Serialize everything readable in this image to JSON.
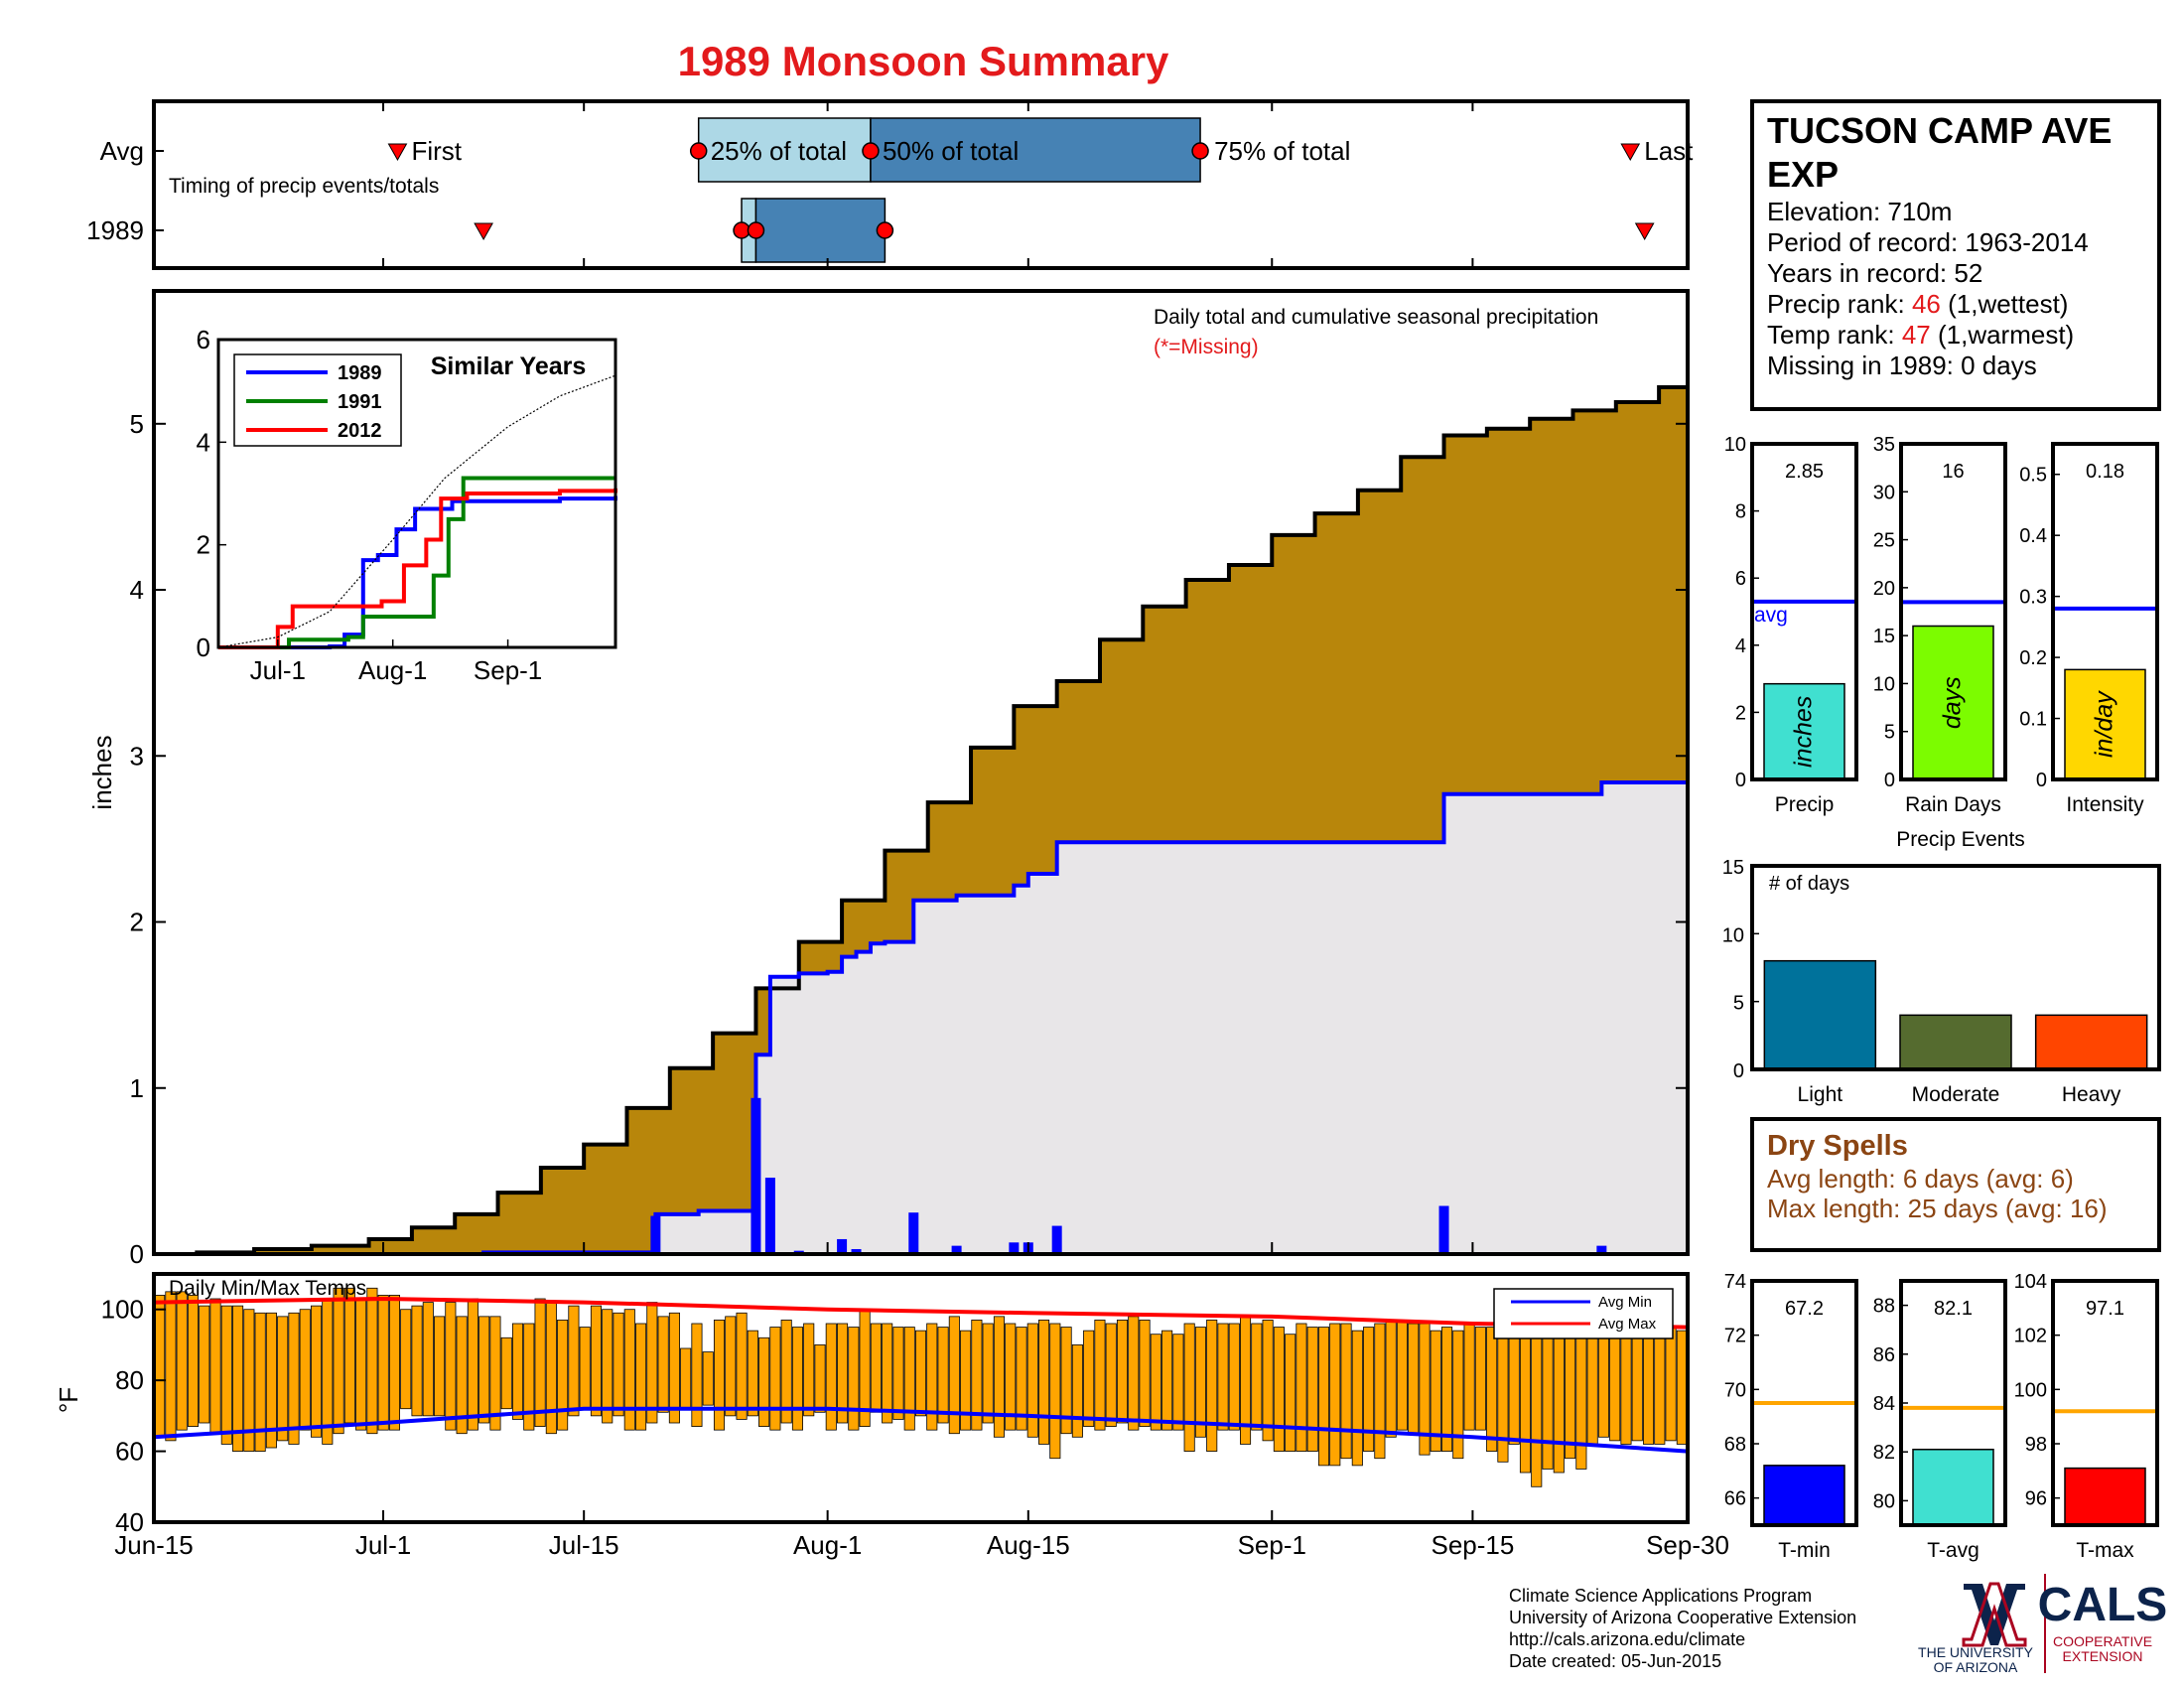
{
  "title": "1989 Monsoon Summary",
  "colors": {
    "title": "#e31a1c",
    "cum_fill": "#b8860b",
    "avg_fill": "#e8e6e8",
    "precip_line": "#0000ff",
    "temp_bar": "#ffa500",
    "avg_max": "#ff0000",
    "avg_min": "#0000ff",
    "q_light": "#add8e6",
    "q_dark": "#4682b4",
    "marker": "#ff0000",
    "year1989": "#0000ff",
    "year1991": "#008000",
    "year2012": "#ff0000",
    "bar_precip": "#40e0d0",
    "bar_days": "#7cfc00",
    "bar_intensity": "#ffd700",
    "ev_light": "#00729b",
    "ev_moderate": "#556b2f",
    "ev_heavy": "#ff4500",
    "dry_text": "#8b4513",
    "tmin": "#0000ff",
    "tavg": "#40e0d0",
    "tmax": "#ff0000",
    "avg_orange": "#ffa500"
  },
  "timing": {
    "row_avg_label": "Avg",
    "row_year_label": "1989",
    "subtitle": "Timing of precip events/totals",
    "labels": {
      "first": "First",
      "q25": "25% of total",
      "q50": "50% of total",
      "q75": "75% of total",
      "last": "Last"
    },
    "avg_dates": {
      "first": "2021-07-02",
      "q25": "2021-07-23",
      "q50": "2021-08-04",
      "q75": "2021-08-27",
      "last": "2021-09-26"
    },
    "year_dates": {
      "first": "2021-07-08",
      "q25": "2021-07-26",
      "q25b": "2021-07-27",
      "q75": "2021-08-05",
      "last": "2021-09-27"
    }
  },
  "main_chart": {
    "note": "Daily total and cumulative seasonal precipitation",
    "missing_note": "(*=Missing)",
    "ylabel": "inches",
    "ylim": [
      0,
      5.8
    ],
    "yticks": [
      0,
      1,
      2,
      3,
      4,
      5
    ],
    "avg_cumulative": [
      [
        "2021-06-15",
        0
      ],
      [
        "2021-06-18",
        0.01
      ],
      [
        "2021-06-22",
        0.03
      ],
      [
        "2021-06-26",
        0.05
      ],
      [
        "2021-06-30",
        0.09
      ],
      [
        "2021-07-03",
        0.16
      ],
      [
        "2021-07-06",
        0.24
      ],
      [
        "2021-07-09",
        0.37
      ],
      [
        "2021-07-12",
        0.52
      ],
      [
        "2021-07-15",
        0.66
      ],
      [
        "2021-07-18",
        0.88
      ],
      [
        "2021-07-21",
        1.12
      ],
      [
        "2021-07-24",
        1.33
      ],
      [
        "2021-07-27",
        1.6
      ],
      [
        "2021-07-30",
        1.88
      ],
      [
        "2021-08-02",
        2.13
      ],
      [
        "2021-08-05",
        2.43
      ],
      [
        "2021-08-08",
        2.72
      ],
      [
        "2021-08-11",
        3.05
      ],
      [
        "2021-08-14",
        3.3
      ],
      [
        "2021-08-17",
        3.45
      ],
      [
        "2021-08-20",
        3.7
      ],
      [
        "2021-08-23",
        3.9
      ],
      [
        "2021-08-26",
        4.06
      ],
      [
        "2021-08-29",
        4.15
      ],
      [
        "2021-09-01",
        4.33
      ],
      [
        "2021-09-04",
        4.46
      ],
      [
        "2021-09-07",
        4.6
      ],
      [
        "2021-09-10",
        4.8
      ],
      [
        "2021-09-13",
        4.93
      ],
      [
        "2021-09-16",
        4.97
      ],
      [
        "2021-09-19",
        5.03
      ],
      [
        "2021-09-22",
        5.08
      ],
      [
        "2021-09-25",
        5.13
      ],
      [
        "2021-09-28",
        5.22
      ],
      [
        "2021-09-30",
        5.25
      ]
    ],
    "year_cumulative": [
      [
        "2021-06-15",
        0
      ],
      [
        "2021-07-08",
        0.01
      ],
      [
        "2021-07-19",
        0.01
      ],
      [
        "2021-07-20",
        0.24
      ],
      [
        "2021-07-23",
        0.26
      ],
      [
        "2021-07-26",
        0.26
      ],
      [
        "2021-07-27",
        1.2
      ],
      [
        "2021-07-28",
        1.67
      ],
      [
        "2021-07-30",
        1.69
      ],
      [
        "2021-08-01",
        1.7
      ],
      [
        "2021-08-02",
        1.79
      ],
      [
        "2021-08-03",
        1.82
      ],
      [
        "2021-08-04",
        1.87
      ],
      [
        "2021-08-05",
        1.88
      ],
      [
        "2021-08-06",
        1.88
      ],
      [
        "2021-08-07",
        2.13
      ],
      [
        "2021-08-10",
        2.16
      ],
      [
        "2021-08-14",
        2.22
      ],
      [
        "2021-08-15",
        2.29
      ],
      [
        "2021-08-17",
        2.48
      ],
      [
        "2021-09-12",
        2.48
      ],
      [
        "2021-09-13",
        2.77
      ],
      [
        "2021-09-23",
        2.77
      ],
      [
        "2021-09-24",
        2.84
      ],
      [
        "2021-09-30",
        2.84
      ]
    ],
    "daily_precip": [
      [
        "2021-07-20",
        0.23
      ],
      [
        "2021-07-24",
        0.01
      ],
      [
        "2021-07-27",
        0.94
      ],
      [
        "2021-07-28",
        0.46
      ],
      [
        "2021-07-30",
        0.02
      ],
      [
        "2021-08-01",
        0.01
      ],
      [
        "2021-08-02",
        0.09
      ],
      [
        "2021-08-03",
        0.03
      ],
      [
        "2021-08-07",
        0.25
      ],
      [
        "2021-08-10",
        0.05
      ],
      [
        "2021-08-14",
        0.07
      ],
      [
        "2021-08-15",
        0.07
      ],
      [
        "2021-08-17",
        0.17
      ],
      [
        "2021-09-13",
        0.29
      ],
      [
        "2021-09-24",
        0.05
      ]
    ]
  },
  "inset": {
    "title": "Similar Years",
    "ylim": [
      0,
      6
    ],
    "yticks": [
      0,
      2,
      4,
      6
    ],
    "xticks": [
      "Jul-1",
      "Aug-1",
      "Sep-1"
    ],
    "series": [
      {
        "name": "1989",
        "color": "#0000ff",
        "points": [
          [
            "2021-06-15",
            0
          ],
          [
            "2021-07-15",
            0.02
          ],
          [
            "2021-07-19",
            0.25
          ],
          [
            "2021-07-24",
            1.7
          ],
          [
            "2021-07-28",
            1.8
          ],
          [
            "2021-08-02",
            2.3
          ],
          [
            "2021-08-07",
            2.7
          ],
          [
            "2021-08-17",
            2.85
          ],
          [
            "2021-09-15",
            2.9
          ],
          [
            "2021-09-30",
            2.95
          ]
        ]
      },
      {
        "name": "1991",
        "color": "#008000",
        "points": [
          [
            "2021-06-15",
            0
          ],
          [
            "2021-07-04",
            0.15
          ],
          [
            "2021-07-20",
            0.2
          ],
          [
            "2021-07-24",
            0.6
          ],
          [
            "2021-08-07",
            0.6
          ],
          [
            "2021-08-12",
            1.4
          ],
          [
            "2021-08-16",
            2.5
          ],
          [
            "2021-08-20",
            3.3
          ],
          [
            "2021-09-05",
            3.3
          ],
          [
            "2021-09-30",
            3.3
          ]
        ]
      },
      {
        "name": "2012",
        "color": "#ff0000",
        "points": [
          [
            "2021-06-15",
            0
          ],
          [
            "2021-06-28",
            0
          ],
          [
            "2021-07-01",
            0.4
          ],
          [
            "2021-07-05",
            0.8
          ],
          [
            "2021-07-29",
            0.9
          ],
          [
            "2021-08-04",
            1.6
          ],
          [
            "2021-08-10",
            2.1
          ],
          [
            "2021-08-14",
            2.9
          ],
          [
            "2021-08-21",
            3.0
          ],
          [
            "2021-09-15",
            3.05
          ],
          [
            "2021-09-30",
            3.1
          ]
        ]
      },
      {
        "name": "avg",
        "color": "#000000",
        "points": [
          [
            "2021-06-15",
            0
          ],
          [
            "2021-07-01",
            0.2
          ],
          [
            "2021-07-15",
            0.7
          ],
          [
            "2021-08-01",
            2.1
          ],
          [
            "2021-08-15",
            3.3
          ],
          [
            "2021-09-01",
            4.3
          ],
          [
            "2021-09-15",
            4.9
          ],
          [
            "2021-09-30",
            5.3
          ]
        ]
      }
    ]
  },
  "temps": {
    "title": "Daily Min/Max Temps",
    "ylabel": "°F",
    "ylim": [
      40,
      110
    ],
    "yticks": [
      40,
      60,
      80,
      100
    ],
    "legend": [
      "Avg Min",
      "Avg Max"
    ],
    "avg_min": [
      [
        "2021-06-15",
        64
      ],
      [
        "2021-07-01",
        68
      ],
      [
        "2021-07-15",
        72
      ],
      [
        "2021-08-01",
        72
      ],
      [
        "2021-08-15",
        70
      ],
      [
        "2021-09-01",
        67
      ],
      [
        "2021-09-15",
        64
      ],
      [
        "2021-09-30",
        60
      ]
    ],
    "avg_max": [
      [
        "2021-06-15",
        102
      ],
      [
        "2021-07-01",
        103
      ],
      [
        "2021-07-15",
        102
      ],
      [
        "2021-08-01",
        100
      ],
      [
        "2021-08-15",
        99
      ],
      [
        "2021-09-01",
        98
      ],
      [
        "2021-09-15",
        96
      ],
      [
        "2021-09-30",
        95
      ]
    ],
    "daily": [
      [
        64,
        104
      ],
      [
        63,
        105
      ],
      [
        66,
        105
      ],
      [
        67,
        104
      ],
      [
        68,
        101
      ],
      [
        65,
        103
      ],
      [
        62,
        101
      ],
      [
        60,
        101
      ],
      [
        60,
        100
      ],
      [
        60,
        99
      ],
      [
        61,
        99
      ],
      [
        63,
        98
      ],
      [
        62,
        99
      ],
      [
        66,
        100
      ],
      [
        64,
        101
      ],
      [
        62,
        103
      ],
      [
        65,
        106
      ],
      [
        68,
        106
      ],
      [
        66,
        103
      ],
      [
        65,
        106
      ],
      [
        66,
        104
      ],
      [
        66,
        104
      ],
      [
        72,
        100
      ],
      [
        70,
        101
      ],
      [
        70,
        102
      ],
      [
        70,
        98
      ],
      [
        66,
        102
      ],
      [
        65,
        98
      ],
      [
        66,
        103
      ],
      [
        68,
        98
      ],
      [
        66,
        98
      ],
      [
        72,
        92
      ],
      [
        69,
        96
      ],
      [
        66,
        96
      ],
      [
        67,
        103
      ],
      [
        65,
        102
      ],
      [
        66,
        97
      ],
      [
        70,
        101
      ],
      [
        72,
        95
      ],
      [
        70,
        101
      ],
      [
        68,
        100
      ],
      [
        70,
        99
      ],
      [
        66,
        100
      ],
      [
        66,
        96
      ],
      [
        68,
        102
      ],
      [
        71,
        98
      ],
      [
        68,
        99
      ],
      [
        72,
        89
      ],
      [
        67,
        96
      ],
      [
        73,
        88
      ],
      [
        66,
        97
      ],
      [
        70,
        98
      ],
      [
        69,
        99
      ],
      [
        70,
        94
      ],
      [
        67,
        92
      ],
      [
        66,
        95
      ],
      [
        68,
        97
      ],
      [
        66,
        95
      ],
      [
        70,
        96
      ],
      [
        71,
        90
      ],
      [
        66,
        96
      ],
      [
        68,
        96
      ],
      [
        66,
        95
      ],
      [
        67,
        100
      ],
      [
        71,
        96
      ],
      [
        68,
        96
      ],
      [
        69,
        95
      ],
      [
        66,
        95
      ],
      [
        70,
        94
      ],
      [
        66,
        96
      ],
      [
        68,
        95
      ],
      [
        65,
        98
      ],
      [
        66,
        94
      ],
      [
        66,
        97
      ],
      [
        68,
        96
      ],
      [
        64,
        98
      ],
      [
        66,
        96
      ],
      [
        66,
        95
      ],
      [
        64,
        96
      ],
      [
        62,
        97
      ],
      [
        58,
        96
      ],
      [
        65,
        95
      ],
      [
        64,
        90
      ],
      [
        67,
        94
      ],
      [
        66,
        97
      ],
      [
        67,
        96
      ],
      [
        68,
        97
      ],
      [
        66,
        98
      ],
      [
        67,
        97
      ],
      [
        66,
        93
      ],
      [
        66,
        94
      ],
      [
        66,
        93
      ],
      [
        60,
        96
      ],
      [
        64,
        95
      ],
      [
        60,
        97
      ],
      [
        66,
        96
      ],
      [
        66,
        96
      ],
      [
        62,
        98
      ],
      [
        66,
        96
      ],
      [
        63,
        97
      ],
      [
        60,
        95
      ],
      [
        60,
        93
      ],
      [
        60,
        96
      ],
      [
        60,
        95
      ],
      [
        56,
        95
      ],
      [
        56,
        96
      ],
      [
        58,
        96
      ],
      [
        56,
        94
      ],
      [
        60,
        95
      ],
      [
        58,
        96
      ],
      [
        64,
        97
      ],
      [
        66,
        97
      ],
      [
        65,
        96
      ],
      [
        59,
        96
      ],
      [
        60,
        94
      ],
      [
        60,
        95
      ],
      [
        58,
        94
      ],
      [
        66,
        96
      ],
      [
        66,
        95
      ],
      [
        60,
        95
      ],
      [
        57,
        95
      ],
      [
        62,
        93
      ],
      [
        54,
        96
      ],
      [
        50,
        96
      ],
      [
        55,
        95
      ],
      [
        54,
        95
      ],
      [
        58,
        95
      ],
      [
        55,
        94
      ],
      [
        62,
        95
      ],
      [
        64,
        93
      ],
      [
        63,
        93
      ],
      [
        62,
        95
      ],
      [
        63,
        95
      ],
      [
        62,
        96
      ],
      [
        62,
        96
      ],
      [
        63,
        95
      ],
      [
        62,
        94
      ]
    ]
  },
  "x_axis": {
    "start": "2021-06-15",
    "end": "2021-09-30",
    "ticks": [
      [
        "2021-06-15",
        "Jun-15"
      ],
      [
        "2021-07-01",
        "Jul-1"
      ],
      [
        "2021-07-15",
        "Jul-15"
      ],
      [
        "2021-08-01",
        "Aug-1"
      ],
      [
        "2021-08-15",
        "Aug-15"
      ],
      [
        "2021-09-01",
        "Sep-1"
      ],
      [
        "2021-09-15",
        "Sep-15"
      ],
      [
        "2021-09-30",
        "Sep-30"
      ]
    ]
  },
  "station": {
    "name_line1": "TUCSON CAMP AVE",
    "name_line2": "EXP",
    "elevation": "Elevation: 710m",
    "period": "Period of record: 1963-2014",
    "years": "Years in record: 52",
    "precip_rank_label": "Precip rank: ",
    "precip_rank_value": "46",
    "precip_rank_suffix": " (1,wettest)",
    "temp_rank_label": "Temp rank: ",
    "temp_rank_value": "47",
    "temp_rank_suffix": " (1,warmest)",
    "missing": "Missing in 1989: 0 days"
  },
  "stat_bars": [
    {
      "label": "Precip",
      "value": 2.85,
      "value_text": "2.85",
      "unit": "inches",
      "avg": 5.3,
      "avg_label": "avg",
      "ylim": [
        0,
        10
      ],
      "yticks": [
        0,
        2,
        4,
        6,
        8,
        10
      ]
    },
    {
      "label": "Rain Days",
      "value": 16,
      "value_text": "16",
      "unit": "days",
      "avg": 18.5,
      "ylim": [
        0,
        35
      ],
      "yticks": [
        0,
        5,
        10,
        15,
        20,
        25,
        30,
        35
      ]
    },
    {
      "label": "Intensity",
      "value": 0.18,
      "value_text": "0.18",
      "unit": "in/day",
      "avg": 0.28,
      "ylim": [
        0,
        0.55
      ],
      "yticks": [
        0,
        0.1,
        0.2,
        0.3,
        0.4,
        0.5
      ]
    }
  ],
  "events": {
    "title": "Precip Events",
    "ylabel": "# of days",
    "ylim": [
      0,
      15
    ],
    "yticks": [
      0,
      5,
      10,
      15
    ],
    "categories": [
      "Light",
      "Moderate",
      "Heavy"
    ],
    "values": [
      8,
      4,
      4
    ]
  },
  "dry_spells": {
    "title": "Dry Spells",
    "avg_line": "Avg length: 6 days (avg: 6)",
    "max_line": "Max length: 25 days (avg: 16)"
  },
  "temp_bars": [
    {
      "label": "T-min",
      "value": 67.2,
      "value_text": "67.2",
      "avg": 69.5,
      "ylim": [
        65,
        74
      ],
      "yticks": [
        66,
        68,
        70,
        72,
        74
      ]
    },
    {
      "label": "T-avg",
      "value": 82.1,
      "value_text": "82.1",
      "avg": 83.8,
      "ylim": [
        79,
        89
      ],
      "yticks": [
        80,
        82,
        84,
        86,
        88
      ]
    },
    {
      "label": "T-max",
      "value": 97.1,
      "value_text": "97.1",
      "avg": 99.2,
      "ylim": [
        95,
        104
      ],
      "yticks": [
        96,
        98,
        100,
        102,
        104
      ]
    }
  ],
  "footer": {
    "line1": "Climate Science Applications Program",
    "line2": "University of Arizona Cooperative Extension",
    "line3": "http://cals.arizona.edu/climate",
    "line4": " Date created: 05-Jun-2015"
  },
  "logos": {
    "ua_line1": "THE UNIVERSITY",
    "ua_line2": "OF ARIZONA",
    "cals": "CALS",
    "coop1": "COOPERATIVE",
    "coop2": "EXTENSION"
  }
}
